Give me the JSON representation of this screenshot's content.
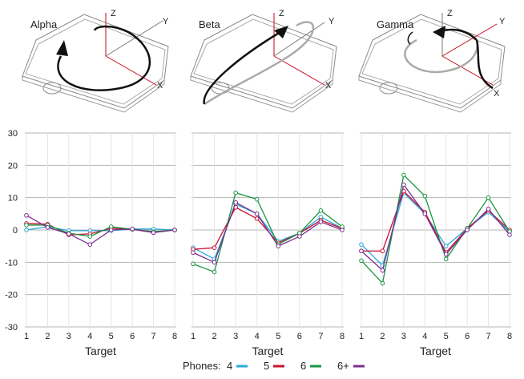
{
  "illustrations": [
    {
      "title": "Alpha",
      "axes": [
        "Z",
        "Y",
        "X"
      ]
    },
    {
      "title": "Beta",
      "axes": [
        "Z",
        "Y",
        "X"
      ]
    },
    {
      "title": "Gamma",
      "axes": [
        "Z",
        "Y",
        "X"
      ]
    }
  ],
  "legend": {
    "prefix": "Phones:",
    "entries": [
      {
        "label": "4",
        "color": "#29a9e0"
      },
      {
        "label": "5",
        "color": "#c8102e"
      },
      {
        "label": "6",
        "color": "#1a9641"
      },
      {
        "label": "6+",
        "color": "#7b2d8e"
      }
    ]
  },
  "chart_data": [
    {
      "type": "line",
      "panel": "Alpha",
      "x": [
        1,
        2,
        3,
        4,
        5,
        6,
        7,
        8
      ],
      "xlabel": "Target",
      "ylabel": "",
      "ylim": [
        -30,
        30
      ],
      "yticks": [
        30,
        20,
        10,
        0,
        -10,
        -20,
        -30
      ],
      "grid": true,
      "series": [
        {
          "name": "4",
          "color": "#29a9e0",
          "values": [
            0,
            1,
            -0.2,
            -0.2,
            -0.2,
            0.3,
            0.3,
            0
          ]
        },
        {
          "name": "5",
          "color": "#c8102e",
          "values": [
            2,
            1.8,
            -1.5,
            -1.2,
            0.5,
            0.2,
            -0.8,
            0
          ]
        },
        {
          "name": "6",
          "color": "#1a9641",
          "values": [
            1.5,
            1.5,
            -1,
            -2,
            1,
            0.2,
            -0.5,
            0
          ]
        },
        {
          "name": "6+",
          "color": "#7b2d8e",
          "values": [
            4.5,
            0.8,
            -1.2,
            -4.5,
            0,
            0.3,
            -0.8,
            0
          ]
        }
      ]
    },
    {
      "type": "line",
      "panel": "Beta",
      "x": [
        1,
        2,
        3,
        4,
        5,
        6,
        7,
        8
      ],
      "xlabel": "Target",
      "ylabel": "",
      "ylim": [
        -30,
        30
      ],
      "grid": true,
      "series": [
        {
          "name": "4",
          "color": "#29a9e0",
          "values": [
            -5.5,
            -9,
            8,
            5,
            -3.5,
            -1,
            4,
            0.5
          ]
        },
        {
          "name": "5",
          "color": "#c8102e",
          "values": [
            -6,
            -5.5,
            7,
            3.5,
            -4,
            -1,
            3,
            0.5
          ]
        },
        {
          "name": "6",
          "color": "#1a9641",
          "values": [
            -10.5,
            -13,
            11.5,
            9.5,
            -4.5,
            -1,
            6,
            1
          ]
        },
        {
          "name": "6+",
          "color": "#7b2d8e",
          "values": [
            -7,
            -10,
            8.5,
            5,
            -5,
            -2,
            2.5,
            0
          ]
        }
      ]
    },
    {
      "type": "line",
      "panel": "Gamma",
      "x": [
        1,
        2,
        3,
        4,
        5,
        6,
        7,
        8
      ],
      "xlabel": "Target",
      "ylabel": "",
      "ylim": [
        -30,
        30
      ],
      "grid": true,
      "series": [
        {
          "name": "4",
          "color": "#29a9e0",
          "values": [
            -4.5,
            -11,
            11.5,
            5,
            -5,
            0.5,
            5.5,
            -0.5
          ]
        },
        {
          "name": "5",
          "color": "#c8102e",
          "values": [
            -6.5,
            -6.5,
            12,
            5.5,
            -7,
            0.5,
            6,
            0
          ]
        },
        {
          "name": "6",
          "color": "#1a9641",
          "values": [
            -9.5,
            -16.5,
            17,
            10.5,
            -9,
            0.5,
            10,
            -0.5
          ]
        },
        {
          "name": "6+",
          "color": "#7b2d8e",
          "values": [
            -6.5,
            -12.5,
            14,
            5,
            -7.5,
            0,
            6.5,
            -1.5
          ]
        }
      ]
    }
  ]
}
